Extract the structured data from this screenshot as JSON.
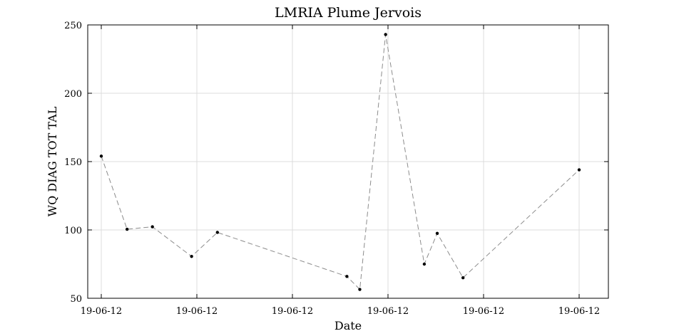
{
  "chart_data": {
    "type": "line",
    "title": "LMRIA Plume Jervois",
    "xlabel": "Date",
    "ylabel": "WQ DIAG TOT TAL",
    "ylim": [
      50,
      250
    ],
    "yticks": [
      50,
      100,
      150,
      200,
      250
    ],
    "xlim": [
      0,
      1
    ],
    "xticks": [
      0,
      0.2,
      0.4,
      0.6,
      0.8,
      1.0
    ],
    "xtick_labels": [
      "19-06-12",
      "19-06-12",
      "19-06-12",
      "19-06-12",
      "19-06-12",
      "19-06-12"
    ],
    "grid": true,
    "series": [
      {
        "line_style": "dashed",
        "line_color": "#8c8c8c",
        "marker_color": "#000000",
        "x": [
          0.0,
          0.054,
          0.107,
          0.189,
          0.243,
          0.514,
          0.541,
          0.595,
          0.676,
          0.703,
          0.757,
          1.0
        ],
        "y": [
          154,
          100.5,
          102.3,
          80.6,
          98.2,
          66,
          56.5,
          243,
          75,
          97.5,
          65,
          144
        ]
      }
    ]
  }
}
